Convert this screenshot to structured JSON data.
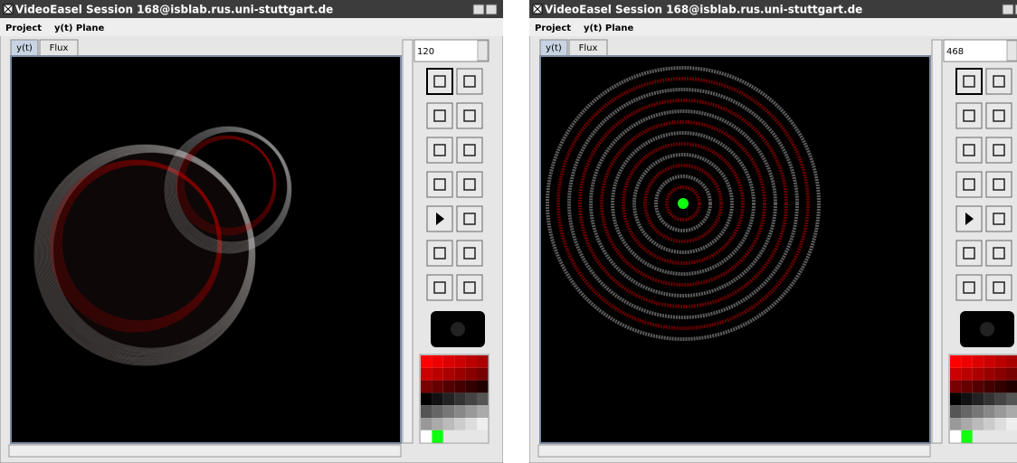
{
  "windows": [
    {
      "title": "VideoEasel Session 168@isblab.rus.uni-stuttgart.de",
      "menu": [
        "Project",
        "y(t) Plane"
      ],
      "tabs": [
        "y(t)",
        "Flux"
      ],
      "spinner": 120
    },
    {
      "title": "VideoEasel Session 168@isblab.rus.uni-stuttgart.de",
      "menu": [
        "Project",
        "y(t) Plane"
      ],
      "tabs": [
        "y(t)",
        "Flux"
      ],
      "spinner": 468
    }
  ]
}
